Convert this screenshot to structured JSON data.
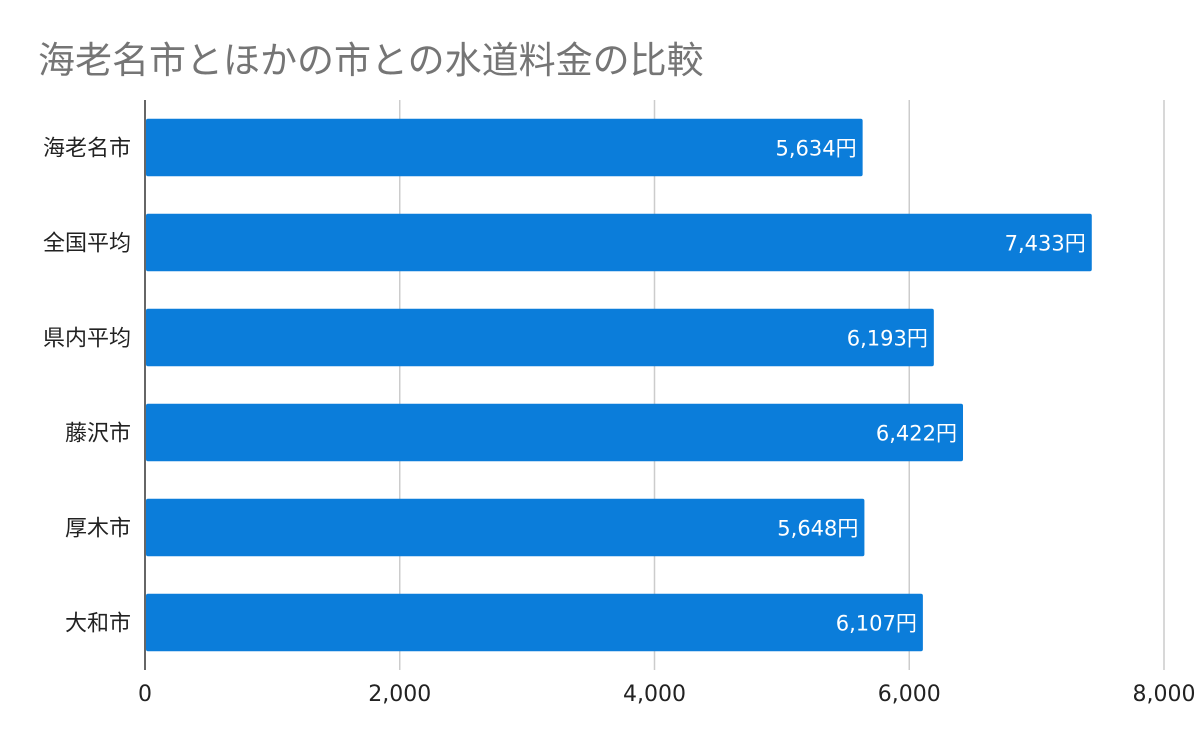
{
  "title": "海老名市とほかの市との水道料金の比較",
  "chart_data": {
    "type": "bar",
    "orientation": "horizontal",
    "title": "海老名市とほかの市との水道料金の比較",
    "categories": [
      "海老名市",
      "全国平均",
      "県内平均",
      "藤沢市",
      "厚木市",
      "大和市"
    ],
    "values": [
      5634,
      7433,
      6193,
      6422,
      5648,
      6107
    ],
    "data_labels": [
      "5,634円",
      "7,433円",
      "6,193円",
      "6,422円",
      "5,648円",
      "6,107円"
    ],
    "xlim": [
      0,
      8000
    ],
    "x_ticks": [
      0,
      2000,
      4000,
      6000,
      8000
    ],
    "x_tick_labels": [
      "0",
      "2,000",
      "4,000",
      "6,000",
      "8,000"
    ],
    "xlabel": "",
    "ylabel": "",
    "grid": true,
    "legend": "none",
    "colors": {
      "bar": "#0b7dda",
      "grid": "#cccccc",
      "axis": "#333333",
      "title": "#757575"
    }
  }
}
